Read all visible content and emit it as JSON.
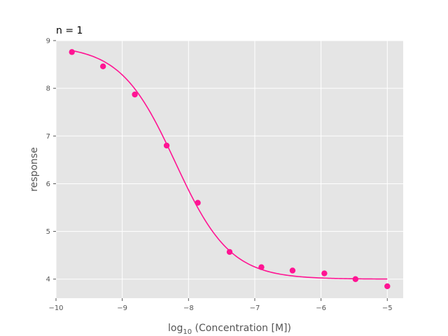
{
  "chart_data": {
    "type": "scatter",
    "title": "n = 1",
    "xlabel": {
      "prefix": "log",
      "subscript": "10",
      "suffix": " (Concentration [M])"
    },
    "ylabel": "response",
    "xlim": [
      -10,
      -4.76
    ],
    "ylim": [
      3.6,
      9.0
    ],
    "xticks": [
      -10,
      -9,
      -8,
      -7,
      -6,
      -5
    ],
    "xtick_labels": [
      "−10",
      "−9",
      "−8",
      "−7",
      "−6",
      "−5"
    ],
    "yticks": [
      4,
      5,
      6,
      7,
      8,
      9
    ],
    "ytick_labels": [
      "4",
      "5",
      "6",
      "7",
      "8",
      "9"
    ],
    "grid": true,
    "colors": {
      "series": "#ff1493",
      "background": "#e5e5e5",
      "grid": "#ffffff"
    },
    "series": [
      {
        "kind": "points",
        "x": [
          -9.76,
          -9.29,
          -8.81,
          -8.33,
          -7.86,
          -7.38,
          -6.9,
          -6.43,
          -5.95,
          -5.48,
          -5.0
        ],
        "y": [
          8.76,
          8.46,
          7.87,
          6.8,
          5.6,
          4.57,
          4.25,
          4.18,
          4.12,
          4.0,
          3.85
        ]
      },
      {
        "kind": "fit-curve",
        "model": "4PL",
        "params": {
          "bottom": 4.0,
          "top": 8.9,
          "logEC50": -8.2,
          "hill": -1.05
        },
        "x_range": [
          -9.76,
          -5.0
        ]
      }
    ]
  }
}
